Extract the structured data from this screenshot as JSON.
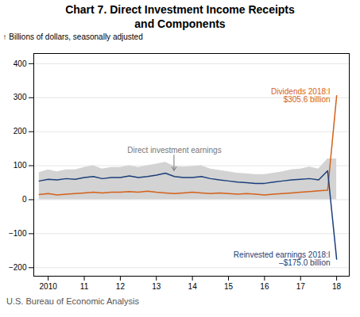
{
  "chart_data": {
    "type": "line",
    "title": "Chart 7. Direct Investment Income Receipts\nand Components",
    "y_label": "Billions of dollars, seasonally adjusted",
    "caption": "U.S. Bureau of Economic Analysis",
    "x": [
      2009.75,
      2010.0,
      2010.25,
      2010.5,
      2010.75,
      2011.0,
      2011.25,
      2011.5,
      2011.75,
      2012.0,
      2012.25,
      2012.5,
      2012.75,
      2013.0,
      2013.25,
      2013.5,
      2013.75,
      2014.0,
      2014.25,
      2014.5,
      2014.75,
      2015.0,
      2015.25,
      2015.5,
      2015.75,
      2016.0,
      2016.25,
      2016.5,
      2016.75,
      2017.0,
      2017.25,
      2017.5,
      2017.75,
      2018.0
    ],
    "xlim": [
      2009.6,
      2018.35
    ],
    "xticks": [
      2010,
      {
        "value": 2011,
        "label": "11"
      },
      {
        "value": 2012,
        "label": "12"
      },
      {
        "value": 2013,
        "label": "13"
      },
      {
        "value": 2014,
        "label": "14"
      },
      {
        "value": 2015,
        "label": "15"
      },
      {
        "value": 2016,
        "label": "16"
      },
      {
        "value": 2017,
        "label": "17"
      },
      {
        "value": 2018,
        "label": "18"
      }
    ],
    "ylim": [
      -225,
      430
    ],
    "yticks": [
      -200,
      -100,
      0,
      100,
      200,
      300,
      400
    ],
    "grid": true,
    "series": [
      {
        "type": "area",
        "color": "#d3d3d3",
        "values": [
          80,
          88,
          82,
          88,
          88,
          95,
          100,
          90,
          95,
          95,
          100,
          95,
          100,
          105,
          110,
          98,
          96,
          98,
          100,
          90,
          86,
          82,
          78,
          76,
          74,
          74,
          78,
          82,
          88,
          90,
          96,
          90,
          120,
          120
        ],
        "lower": [
          0,
          0,
          0,
          0,
          0,
          0,
          0,
          0,
          0,
          0,
          0,
          0,
          0,
          0,
          0,
          0,
          0,
          0,
          0,
          0,
          0,
          0,
          0,
          0,
          0,
          0,
          0,
          0,
          0,
          0,
          0,
          0,
          0,
          0
        ]
      },
      {
        "color": "#d4611a",
        "values": [
          15,
          18,
          14,
          16,
          18,
          20,
          22,
          20,
          22,
          22,
          24,
          22,
          25,
          22,
          20,
          18,
          20,
          22,
          20,
          18,
          20,
          18,
          16,
          18,
          16,
          14,
          16,
          18,
          20,
          22,
          24,
          26,
          28,
          305.6
        ]
      },
      {
        "color": "#1a3f7a",
        "values": [
          55,
          60,
          58,
          62,
          60,
          65,
          68,
          62,
          65,
          65,
          70,
          65,
          68,
          72,
          78,
          68,
          65,
          65,
          68,
          62,
          58,
          55,
          52,
          50,
          48,
          48,
          52,
          55,
          58,
          60,
          62,
          58,
          85,
          -175.0
        ]
      }
    ],
    "annotations": [
      {
        "text": "Direct investment earnings",
        "x": 2013.5,
        "y": 82,
        "color": "#777777",
        "arrow": true
      },
      {
        "text": "Dividends 2018:I\n$305.6 billion",
        "x": 2018.0,
        "y": 305.6,
        "color": "#d4611a"
      },
      {
        "text": "Reinvested earnings 2018:I\n–$175.0 billion",
        "x": 2018.0,
        "y": -175.0,
        "color": "#1a3f7a"
      }
    ]
  }
}
